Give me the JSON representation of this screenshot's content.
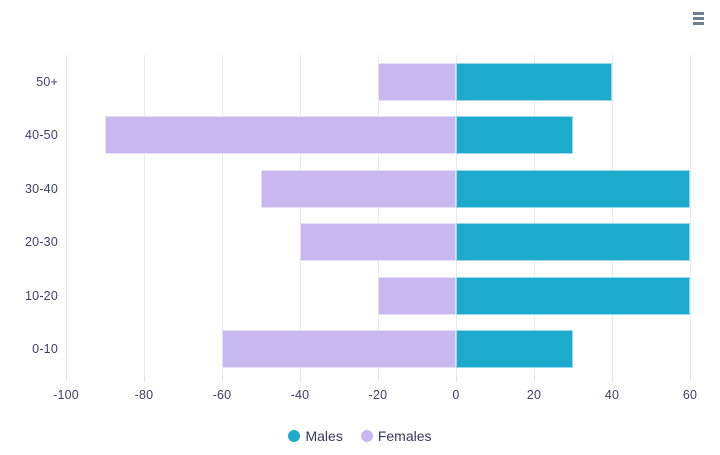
{
  "toolbar": {
    "menu_icon": "hamburger-menu"
  },
  "chart_data": {
    "type": "bar",
    "orientation": "horizontal",
    "stacked": true,
    "title": "",
    "xlabel": "",
    "ylabel": "",
    "categories": [
      "50+",
      "40-50",
      "30-40",
      "20-30",
      "10-20",
      "0-10"
    ],
    "series": [
      {
        "name": "Males",
        "color": "#1DAACD",
        "values": [
          40,
          30,
          60,
          60,
          60,
          30
        ]
      },
      {
        "name": "Females",
        "color": "#C7B9F0",
        "values": [
          -20,
          -90,
          -50,
          -40,
          -20,
          -60
        ]
      }
    ],
    "xlim": [
      -100,
      60
    ],
    "x_ticks": [
      -100,
      -80,
      -60,
      -40,
      -20,
      0,
      20,
      40,
      60
    ],
    "grid": "vertical-only",
    "legend_position": "bottom"
  },
  "colors": {
    "grid": "#e9e9ef",
    "axis_label": "#3c436a",
    "legend_text": "#333b5e",
    "menu_icon": "#6E8192",
    "background": "#ffffff"
  }
}
